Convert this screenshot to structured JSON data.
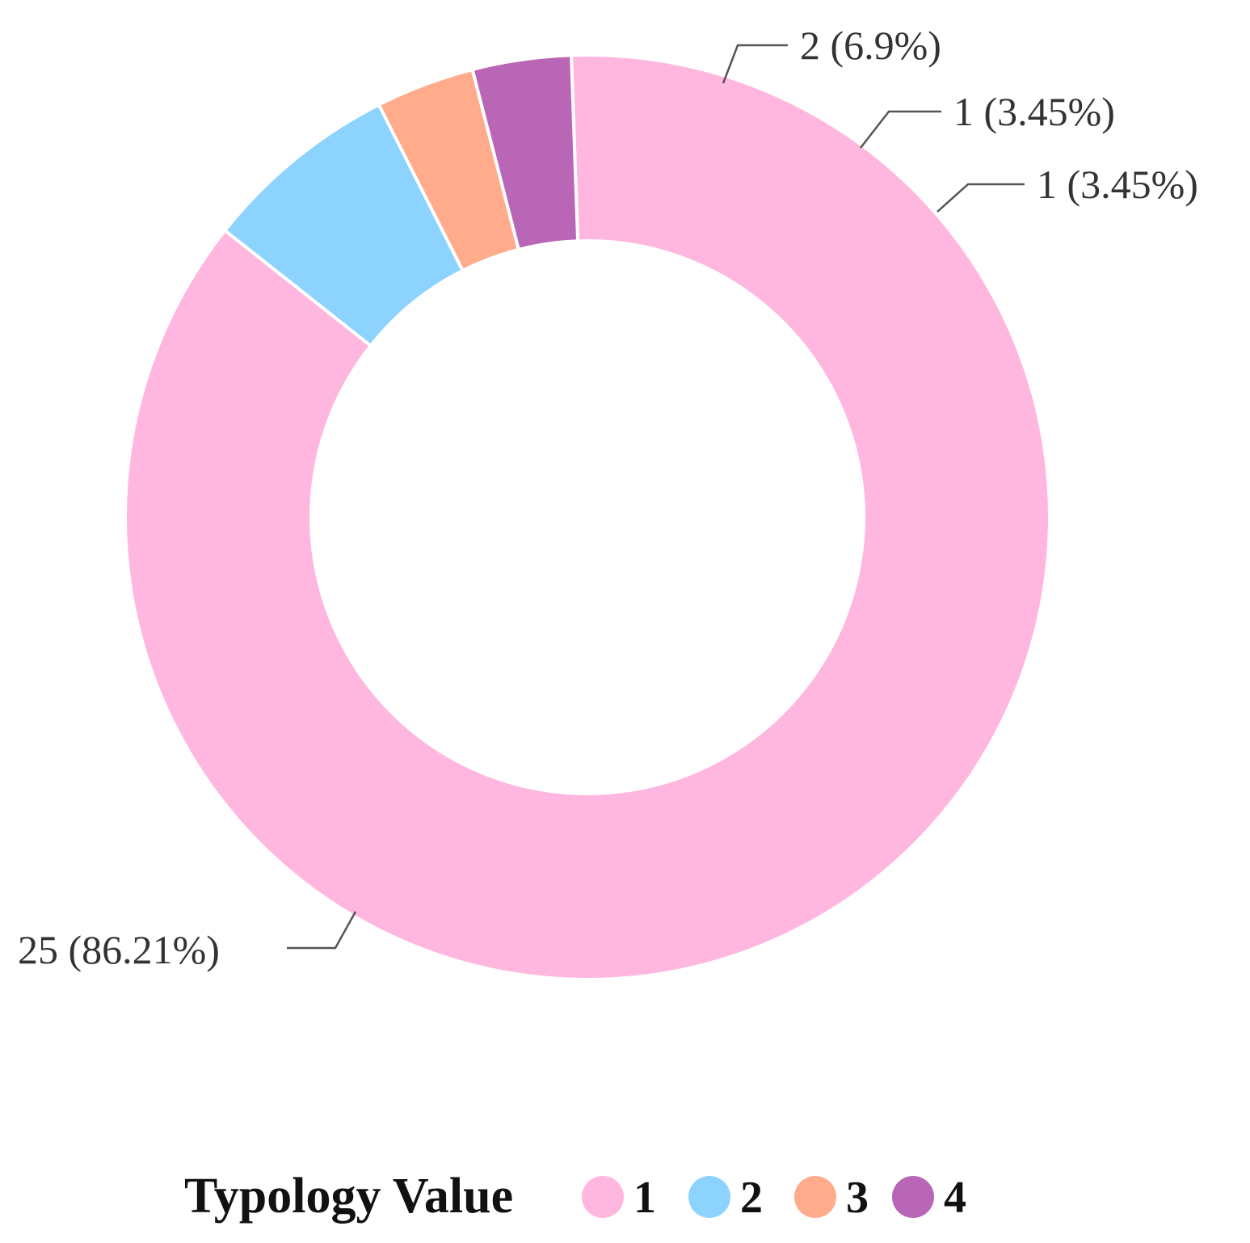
{
  "chart_data": {
    "type": "pie",
    "variant": "donut",
    "categories": [
      "1",
      "2",
      "3",
      "4"
    ],
    "values": [
      25,
      2,
      1,
      1
    ],
    "percentages": [
      86.21,
      6.9,
      3.45,
      3.45
    ],
    "data_labels": [
      "25 (86.21%)",
      "2 (6.9%)",
      "1 (3.45%)",
      "1 (3.45%)"
    ],
    "colors": [
      "#FFB6DF",
      "#8DD3FF",
      "#FFAB8C",
      "#B866B5"
    ],
    "legend": {
      "title": "Typology Value",
      "placement": "bottom",
      "entries": [
        "1",
        "2",
        "3",
        "4"
      ]
    }
  }
}
